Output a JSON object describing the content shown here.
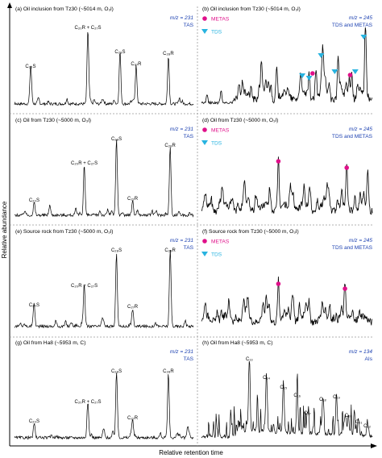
{
  "figure": {
    "y_axis_label": "Relative abundance",
    "x_axis_label": "Relative retention time"
  },
  "legend_labels": {
    "metas": "METAS",
    "tds": "TDS"
  },
  "colors": {
    "trace": "#000000",
    "metas_marker": "#e0108a",
    "tds_marker": "#27b3e0",
    "mz_text": "#1a3fb0",
    "axis": "#000000",
    "divider": "#888888"
  },
  "chart_data": [
    {
      "id": "a",
      "type": "line",
      "title": "(a) Oil inclusion from Tz30 (~5014 m, O₃l)",
      "mz": "m/z = 231",
      "mz_sub": "TAS",
      "legend": [],
      "peaks": [
        {
          "label": "C₂₀S",
          "x": 0.09,
          "height": 0.44
        },
        {
          "label": "C₂₀R + C₂₇S",
          "x": 0.41,
          "height": 0.92
        },
        {
          "label": "C₂₈S",
          "x": 0.59,
          "height": 0.62
        },
        {
          "label": "C₂₇R",
          "x": 0.68,
          "height": 0.47
        },
        {
          "label": "C₂₈R",
          "x": 0.86,
          "height": 0.6
        }
      ]
    },
    {
      "id": "b",
      "type": "line",
      "title": "(b) Oil inclusion from Tz30 (~5014 m, O₃l)",
      "mz": "m/z = 245",
      "mz_sub": "TDS and METAS",
      "legend": [
        "metas",
        "tds"
      ],
      "peaks": [
        {
          "label": "",
          "x": 0.35,
          "height": 0.4
        },
        {
          "label": "",
          "x": 0.44,
          "height": 0.38
        },
        {
          "label": "",
          "x": 0.58,
          "height": 0.3
        },
        {
          "label": "",
          "x": 0.63,
          "height": 0.27
        },
        {
          "label": "",
          "x": 0.67,
          "height": 0.36
        },
        {
          "label": "",
          "x": 0.71,
          "height": 0.55
        },
        {
          "label": "",
          "x": 0.8,
          "height": 0.46
        },
        {
          "label": "",
          "x": 0.88,
          "height": 0.33
        },
        {
          "label": "",
          "x": 0.96,
          "height": 0.78
        }
      ],
      "metas_x": [
        0.65,
        0.87
      ],
      "tds_x": [
        0.59,
        0.63,
        0.7,
        0.78,
        0.9,
        0.95
      ]
    },
    {
      "id": "c",
      "type": "line",
      "title": "(c) Oil from Tz30 (~5000 m, O₃l)",
      "mz": "m/z = 231",
      "mz_sub": "TAS",
      "legend": [],
      "peaks": [
        {
          "label": "C₂₀S",
          "x": 0.11,
          "height": 0.16
        },
        {
          "label": "C₂₀R + C₂₇S",
          "x": 0.39,
          "height": 0.62
        },
        {
          "label": "C₂₈S",
          "x": 0.57,
          "height": 0.92
        },
        {
          "label": "C₂₇R",
          "x": 0.66,
          "height": 0.18
        },
        {
          "label": "C₂₈R",
          "x": 0.87,
          "height": 0.84
        }
      ]
    },
    {
      "id": "d",
      "type": "line",
      "title": "(d) Oil from Tz30 (~5000 m, O₃l)",
      "mz": "m/z = 245",
      "mz_sub": "TDS and METAS",
      "legend": [
        "metas",
        "tds"
      ],
      "peaks": [
        {
          "label": "",
          "x": 0.12,
          "height": 0.2
        },
        {
          "label": "",
          "x": 0.25,
          "height": 0.22
        },
        {
          "label": "",
          "x": 0.4,
          "height": 0.26
        },
        {
          "label": "",
          "x": 0.45,
          "height": 0.64
        },
        {
          "label": "",
          "x": 0.52,
          "height": 0.3
        },
        {
          "label": "",
          "x": 0.6,
          "height": 0.24
        },
        {
          "label": "",
          "x": 0.74,
          "height": 0.2
        },
        {
          "label": "",
          "x": 0.85,
          "height": 0.56
        },
        {
          "label": "",
          "x": 0.95,
          "height": 0.18
        }
      ],
      "metas_x": [
        0.45,
        0.85
      ],
      "tds_x": []
    },
    {
      "id": "e",
      "type": "line",
      "title": "(e) Source rock from Tz30 (~5000 m, O₃l)",
      "mz": "m/z = 231",
      "mz_sub": "TAS",
      "legend": [],
      "peaks": [
        {
          "label": "C₂₀S",
          "x": 0.11,
          "height": 0.24
        },
        {
          "label": "C₂₀R + C₂₇S",
          "x": 0.39,
          "height": 0.48
        },
        {
          "label": "C₂₈S",
          "x": 0.57,
          "height": 0.92
        },
        {
          "label": "C₂₇R",
          "x": 0.66,
          "height": 0.22
        },
        {
          "label": "C₂₈R",
          "x": 0.87,
          "height": 0.92
        }
      ]
    },
    {
      "id": "f",
      "type": "line",
      "title": "(f) Source rock from Tz30 (~5000 m, O₃l)",
      "mz": "m/z = 245",
      "mz_sub": "TDS and METAS",
      "legend": [
        "metas",
        "tds"
      ],
      "peaks": [
        {
          "label": "",
          "x": 0.16,
          "height": 0.2
        },
        {
          "label": "",
          "x": 0.27,
          "height": 0.22
        },
        {
          "label": "",
          "x": 0.38,
          "height": 0.24
        },
        {
          "label": "",
          "x": 0.45,
          "height": 0.5
        },
        {
          "label": "",
          "x": 0.53,
          "height": 0.26
        },
        {
          "label": "",
          "x": 0.63,
          "height": 0.22
        },
        {
          "label": "",
          "x": 0.75,
          "height": 0.2
        },
        {
          "label": "",
          "x": 0.84,
          "height": 0.44
        }
      ],
      "metas_x": [
        0.45,
        0.84
      ],
      "tds_x": []
    },
    {
      "id": "g",
      "type": "line",
      "title": "(g) Oil from Ha8 (~5953 m, C)",
      "mz": "m/z = 231",
      "mz_sub": "TAS",
      "legend": [],
      "peaks": [
        {
          "label": "C₂₀S",
          "x": 0.11,
          "height": 0.18
        },
        {
          "label": "C₂₀R + C₂₇S",
          "x": 0.41,
          "height": 0.42
        },
        {
          "label": "C₂₈S",
          "x": 0.57,
          "height": 0.8
        },
        {
          "label": "C₂₇R",
          "x": 0.66,
          "height": 0.22
        },
        {
          "label": "C₂₈R",
          "x": 0.86,
          "height": 0.8
        }
      ]
    },
    {
      "id": "h",
      "type": "line",
      "title": "(h) Oil from Ha8 (~5953 m, C)",
      "mz": "m/z = 134",
      "mz_sub": "AIs",
      "legend": [],
      "peaks": [
        {
          "label": "C₁₃",
          "x": 0.28,
          "height": 0.95
        },
        {
          "label": "C₁₄",
          "x": 0.38,
          "height": 0.72
        },
        {
          "label": "C₁₅",
          "x": 0.48,
          "height": 0.6
        },
        {
          "label": "C₁₆",
          "x": 0.56,
          "height": 0.5
        },
        {
          "label": "C₁₇",
          "x": 0.62,
          "height": 0.28
        },
        {
          "label": "C₁₈",
          "x": 0.71,
          "height": 0.45
        },
        {
          "label": "C₁₉",
          "x": 0.79,
          "height": 0.48
        },
        {
          "label": "C₂₀",
          "x": 0.86,
          "height": 0.25
        },
        {
          "label": "C₂₁",
          "x": 0.92,
          "height": 0.17
        },
        {
          "label": "C₂₂",
          "x": 0.97,
          "height": 0.12
        }
      ]
    }
  ]
}
